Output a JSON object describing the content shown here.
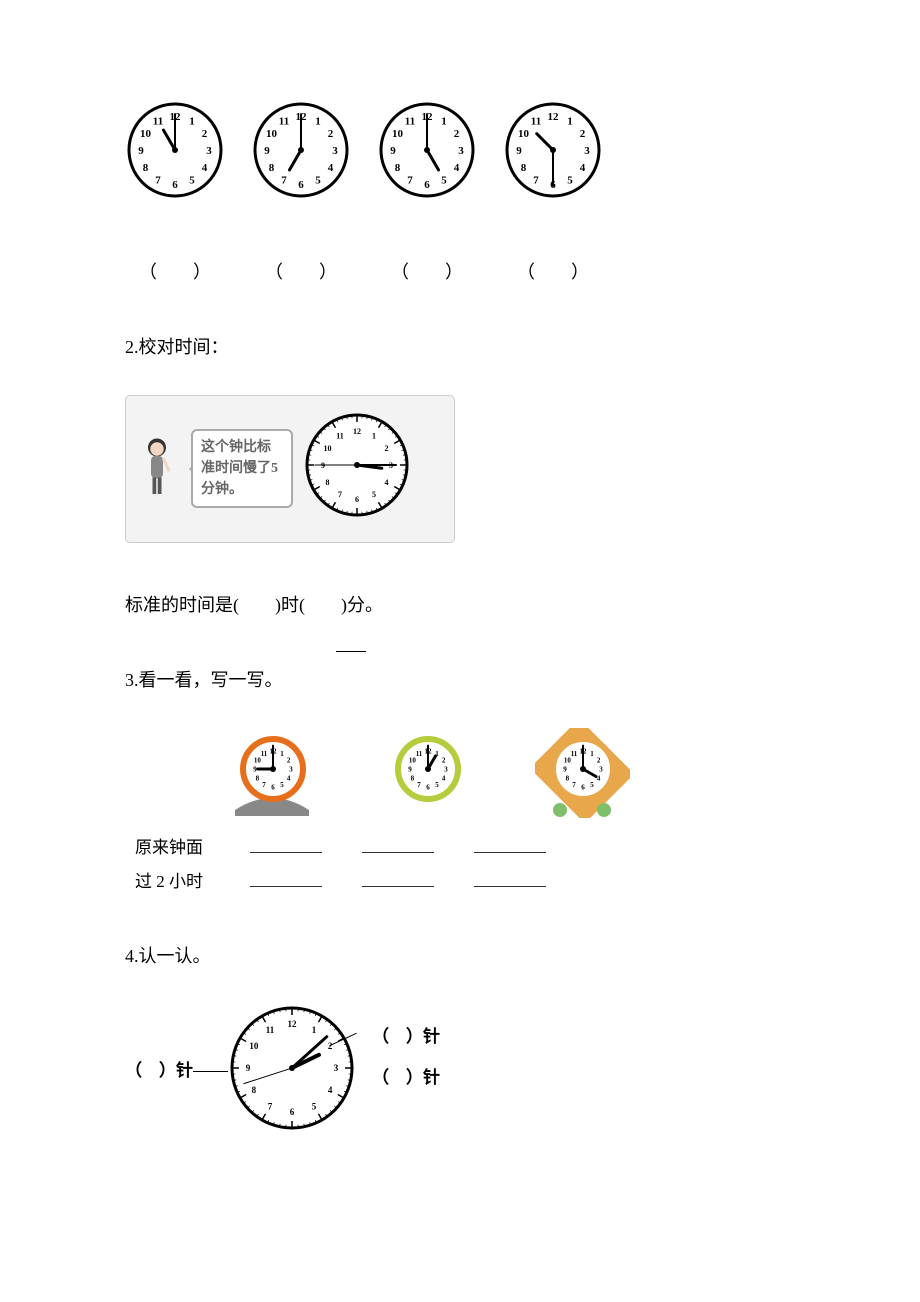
{
  "q1": {
    "clocks": [
      {
        "hour": 11,
        "minute": 0
      },
      {
        "hour": 7,
        "minute": 0
      },
      {
        "hour": 5,
        "minute": 0
      },
      {
        "hour": 10,
        "minute": 30
      }
    ],
    "blankOpen": "（",
    "blankClose": "）",
    "gap": "　　"
  },
  "q2": {
    "title": "2.校对时间：",
    "bubbleText": "这个钟比标准时间慢了5分钟。",
    "clock": {
      "hour": 3,
      "minute": 15,
      "second": 45,
      "showSecond": true,
      "showTicks": true,
      "radius": 50,
      "numFont": 8
    },
    "answerLine_a": "标准的时间是(",
    "answerLine_b": ")时(",
    "answerLine_c": ")分。",
    "gap": "　　"
  },
  "q3": {
    "title": "3.看一看，写一写。",
    "clocks": [
      {
        "hour": 9,
        "minute": 0,
        "rimColor": "#e76f1c",
        "rimW": 6,
        "base": {
          "type": "arc",
          "color": "#888"
        }
      },
      {
        "hour": 1,
        "minute": 0,
        "rimColor": "#b5cc3c",
        "rimW": 6,
        "base": {
          "type": "none"
        }
      },
      {
        "hour": 4,
        "minute": 0,
        "rimColor": "#e7a74a",
        "rimW": 6,
        "base": {
          "type": "square",
          "color": "#e7a74a",
          "feet": "#7fbf6b"
        }
      }
    ],
    "row1Label": "原来钟面",
    "row2Label": "过 2 小时"
  },
  "q4": {
    "title": "4.认一认。",
    "clock": {
      "hour": 2,
      "minute": 8,
      "second": 42,
      "showSecond": true,
      "showTicks": true,
      "radius": 60,
      "thick": true,
      "numFont": 9
    },
    "leftLabel_a": "（",
    "leftLabel_b": "）针",
    "right1_a": "（",
    "right1_b": "）针",
    "right2_a": "（",
    "right2_b": "）针",
    "gap": "　"
  },
  "clockDefaults": {
    "numbers": [
      "12",
      "1",
      "2",
      "3",
      "4",
      "5",
      "6",
      "7",
      "8",
      "9",
      "10",
      "11"
    ],
    "face": "#ffffff",
    "line": "#000000"
  }
}
